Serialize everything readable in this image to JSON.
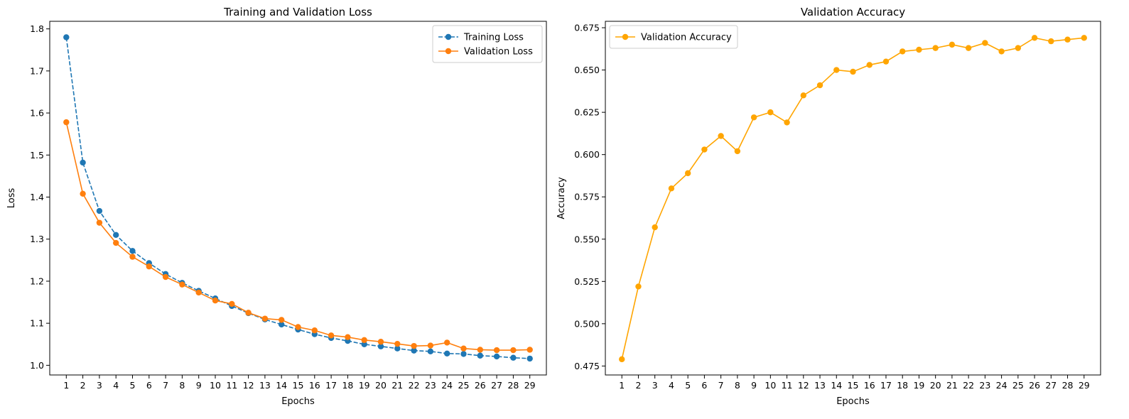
{
  "figure": {
    "background": "#ffffff"
  },
  "chart_data": [
    {
      "type": "line",
      "title": "Training and Validation Loss",
      "xlabel": "Epochs",
      "ylabel": "Loss",
      "xlim": [
        0,
        30
      ],
      "ylim": [
        0.977,
        1.818
      ],
      "x_ticks": [
        1,
        2,
        3,
        4,
        5,
        6,
        7,
        8,
        9,
        10,
        11,
        12,
        13,
        14,
        15,
        16,
        17,
        18,
        19,
        20,
        21,
        22,
        23,
        24,
        25,
        26,
        27,
        28,
        29
      ],
      "y_ticks": [
        1.0,
        1.1,
        1.2,
        1.3,
        1.4,
        1.5,
        1.6,
        1.7,
        1.8
      ],
      "y_tick_labels": [
        "1.0",
        "1.1",
        "1.2",
        "1.3",
        "1.4",
        "1.5",
        "1.6",
        "1.7",
        "1.8"
      ],
      "grid": false,
      "legend_position": "top-right",
      "x": [
        1,
        2,
        3,
        4,
        5,
        6,
        7,
        8,
        9,
        10,
        11,
        12,
        13,
        14,
        15,
        16,
        17,
        18,
        19,
        20,
        21,
        22,
        23,
        24,
        25,
        26,
        27,
        28,
        29
      ],
      "series": [
        {
          "name": "Training Loss",
          "color": "#1f77b4",
          "line_style": "dashed",
          "marker": "circle",
          "values": [
            1.78,
            1.482,
            1.367,
            1.31,
            1.272,
            1.243,
            1.217,
            1.196,
            1.177,
            1.159,
            1.141,
            1.124,
            1.109,
            1.097,
            1.085,
            1.074,
            1.065,
            1.058,
            1.05,
            1.045,
            1.04,
            1.035,
            1.033,
            1.028,
            1.027,
            1.023,
            1.021,
            1.018,
            1.016
          ]
        },
        {
          "name": "Validation Loss",
          "color": "#ff7f0e",
          "line_style": "solid",
          "marker": "circle",
          "values": [
            1.578,
            1.408,
            1.339,
            1.291,
            1.258,
            1.235,
            1.21,
            1.192,
            1.173,
            1.154,
            1.146,
            1.125,
            1.111,
            1.108,
            1.091,
            1.083,
            1.071,
            1.067,
            1.06,
            1.056,
            1.051,
            1.046,
            1.047,
            1.054,
            1.04,
            1.037,
            1.036,
            1.036,
            1.037
          ]
        }
      ]
    },
    {
      "type": "line",
      "title": "Validation Accuracy",
      "xlabel": "Epochs",
      "ylabel": "Accuracy",
      "xlim": [
        0,
        30
      ],
      "ylim": [
        0.4697,
        0.6788
      ],
      "x_ticks": [
        1,
        2,
        3,
        4,
        5,
        6,
        7,
        8,
        9,
        10,
        11,
        12,
        13,
        14,
        15,
        16,
        17,
        18,
        19,
        20,
        21,
        22,
        23,
        24,
        25,
        26,
        27,
        28,
        29
      ],
      "y_ticks": [
        0.475,
        0.5,
        0.525,
        0.55,
        0.575,
        0.6,
        0.625,
        0.65,
        0.675
      ],
      "y_tick_labels": [
        "0.475",
        "0.500",
        "0.525",
        "0.550",
        "0.575",
        "0.600",
        "0.625",
        "0.650",
        "0.675"
      ],
      "grid": false,
      "legend_position": "top-left",
      "x": [
        1,
        2,
        3,
        4,
        5,
        6,
        7,
        8,
        9,
        10,
        11,
        12,
        13,
        14,
        15,
        16,
        17,
        18,
        19,
        20,
        21,
        22,
        23,
        24,
        25,
        26,
        27,
        28,
        29
      ],
      "series": [
        {
          "name": "Validation Accuracy",
          "color": "#ffa500",
          "line_style": "solid",
          "marker": "circle",
          "values": [
            0.479,
            0.522,
            0.557,
            0.58,
            0.589,
            0.603,
            0.611,
            0.602,
            0.622,
            0.625,
            0.619,
            0.635,
            0.641,
            0.65,
            0.649,
            0.653,
            0.655,
            0.661,
            0.662,
            0.663,
            0.665,
            0.663,
            0.666,
            0.661,
            0.663,
            0.669,
            0.667,
            0.668,
            0.669
          ]
        }
      ]
    }
  ]
}
